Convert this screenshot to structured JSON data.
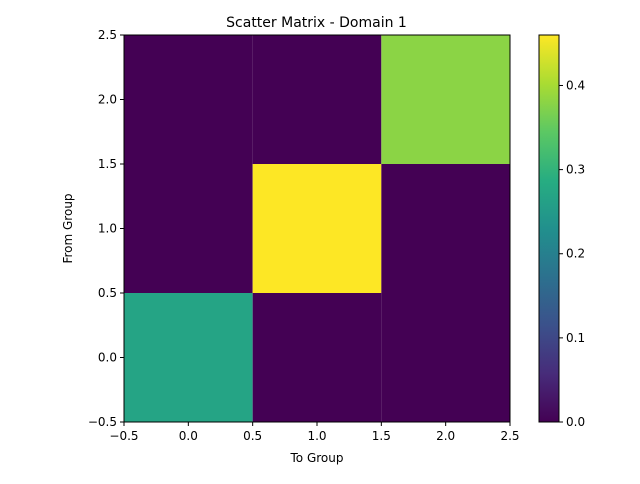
{
  "chart_data": {
    "type": "heatmap",
    "title": "Scatter Matrix - Domain 1",
    "xlabel": "To Group",
    "ylabel": "From Group",
    "x": [
      0,
      1,
      2
    ],
    "y": [
      0,
      1,
      2
    ],
    "xlim": [
      -0.5,
      2.5
    ],
    "ylim": [
      -0.5,
      2.5
    ],
    "xticks": [
      "−0.5",
      "0.0",
      "0.5",
      "1.0",
      "1.5",
      "2.0",
      "2.5"
    ],
    "yticks": [
      "−0.5",
      "0.0",
      "0.5",
      "1.0",
      "1.5",
      "2.0",
      "2.5"
    ],
    "values": [
      [
        0.27,
        0.0,
        0.0
      ],
      [
        0.0,
        0.46,
        0.0
      ],
      [
        0.0,
        0.0,
        0.38
      ]
    ],
    "value_range": [
      0.0,
      0.46
    ],
    "colormap": "viridis",
    "colorbar_ticks": [
      "0.0",
      "0.1",
      "0.2",
      "0.3",
      "0.4"
    ],
    "grid": false
  }
}
